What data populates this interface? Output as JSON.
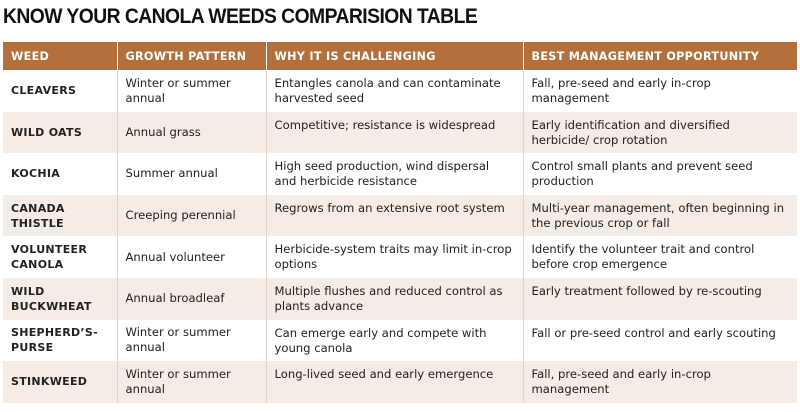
{
  "title": "KNOW YOUR CANOLA WEEDS COMPARISION TABLE",
  "table": {
    "headers": [
      "WEED",
      "GROWTH PATTERN",
      "WHY IT IS CHALLENGING",
      "BEST MANAGEMENT OPPORTUNITY"
    ],
    "rows": [
      [
        "CLEAVERS",
        "Winter or summer annual",
        "Entangles canola and can contaminate harvested seed",
        "Fall, pre-seed and early in-crop management"
      ],
      [
        "WILD OATS",
        "Annual grass",
        "Competitive; resistance is widespread",
        "Early identification and diversified herbicide/ crop rotation"
      ],
      [
        "KOCHIA",
        "Summer annual",
        "High seed production, wind dispersal and herbicide resistance",
        "Control small plants and prevent seed production"
      ],
      [
        "CANADA THISTLE",
        "Creeping perennial",
        "Regrows from an extensive root system",
        "Multi-year management, often beginning in the previous crop or fall"
      ],
      [
        "VOLUNTEER CANOLA",
        "Annual volunteer",
        "Herbicide-system traits may limit in-crop options",
        "Identify the volunteer trait and control before crop emergence"
      ],
      [
        "WILD BUCKWHEAT",
        "Annual broadleaf",
        "Multiple flushes and reduced control as plants advance",
        "Early treatment followed by re-scouting"
      ],
      [
        "SHEPHERD’S-PURSE",
        "Winter or summer annual",
        "Can emerge early and compete with young canola",
        "Fall or pre-seed control and early scouting"
      ],
      [
        "STINKWEED",
        "Winter or summer annual",
        "Long-lived seed and early emergence",
        "Fall, pre-seed and early in-crop management"
      ]
    ]
  }
}
